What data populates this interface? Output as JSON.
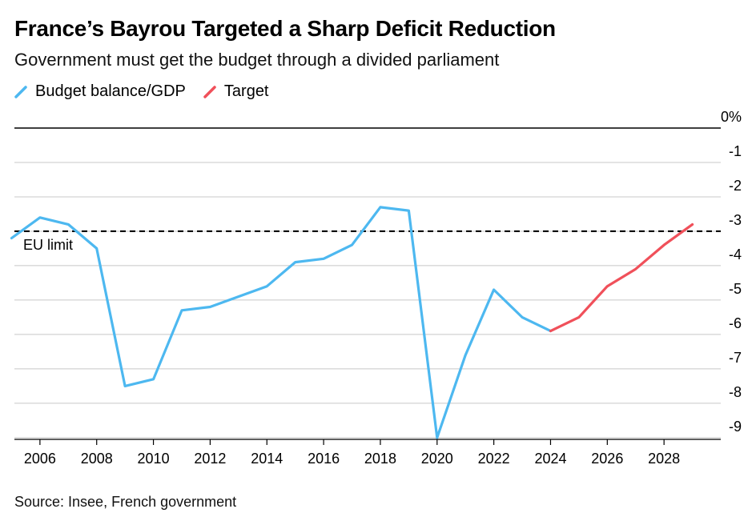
{
  "title": "France’s Bayrou Targeted a Sharp Deficit Reduction",
  "subtitle": "Government must get the budget through a divided parliament",
  "source": "Source: Insee, French government",
  "legend": [
    {
      "name": "Budget balance/GDP",
      "color": "#4db8f0"
    },
    {
      "name": "Target",
      "color": "#f0505a"
    }
  ],
  "chart_data": {
    "type": "line",
    "title": "France’s Bayrou Targeted a Sharp Deficit Reduction",
    "subtitle": "Government must get the budget through a divided parliament",
    "xlabel": "",
    "ylabel": "",
    "xlim": [
      2005,
      2030
    ],
    "ylim": [
      -9.3,
      0
    ],
    "y_ticks": [
      {
        "value": 0,
        "label": "0%"
      },
      {
        "value": -1,
        "label": "-1"
      },
      {
        "value": -2,
        "label": "-2"
      },
      {
        "value": -3,
        "label": "-3"
      },
      {
        "value": -4,
        "label": "-4"
      },
      {
        "value": -5,
        "label": "-5"
      },
      {
        "value": -6,
        "label": "-6"
      },
      {
        "value": -7,
        "label": "-7"
      },
      {
        "value": -8,
        "label": "-8"
      },
      {
        "value": -9,
        "label": "-9"
      }
    ],
    "x_ticks": [
      {
        "value": 2006,
        "label": "2006"
      },
      {
        "value": 2008,
        "label": "2008"
      },
      {
        "value": 2010,
        "label": "2010"
      },
      {
        "value": 2012,
        "label": "2012"
      },
      {
        "value": 2014,
        "label": "2014"
      },
      {
        "value": 2016,
        "label": "2016"
      },
      {
        "value": 2018,
        "label": "2018"
      },
      {
        "value": 2020,
        "label": "2020"
      },
      {
        "value": 2022,
        "label": "2022"
      },
      {
        "value": 2024,
        "label": "2024"
      },
      {
        "value": 2026,
        "label": "2026"
      },
      {
        "value": 2028,
        "label": "2028"
      }
    ],
    "grid": true,
    "legend_position": "top-left",
    "series": [
      {
        "name": "Budget balance/GDP",
        "color": "#4db8f0",
        "x": [
          2005,
          2006,
          2007,
          2008,
          2009,
          2010,
          2011,
          2012,
          2013,
          2014,
          2015,
          2016,
          2017,
          2018,
          2019,
          2020,
          2021,
          2022,
          2023,
          2024
        ],
        "y": [
          -3.2,
          -2.6,
          -2.8,
          -3.5,
          -7.5,
          -7.3,
          -5.3,
          -5.2,
          -4.9,
          -4.6,
          -3.9,
          -3.8,
          -3.4,
          -2.3,
          -2.4,
          -9.0,
          -6.6,
          -4.7,
          -5.5,
          -5.9
        ]
      },
      {
        "name": "Target",
        "color": "#f0505a",
        "x": [
          2024,
          2025,
          2026,
          2027,
          2028,
          2029
        ],
        "y": [
          -5.9,
          -5.5,
          -4.6,
          -4.1,
          -3.4,
          -2.8
        ]
      }
    ],
    "annotations": [
      {
        "text": "EU limit",
        "y": -3.0,
        "style": "dashed-line"
      }
    ]
  }
}
